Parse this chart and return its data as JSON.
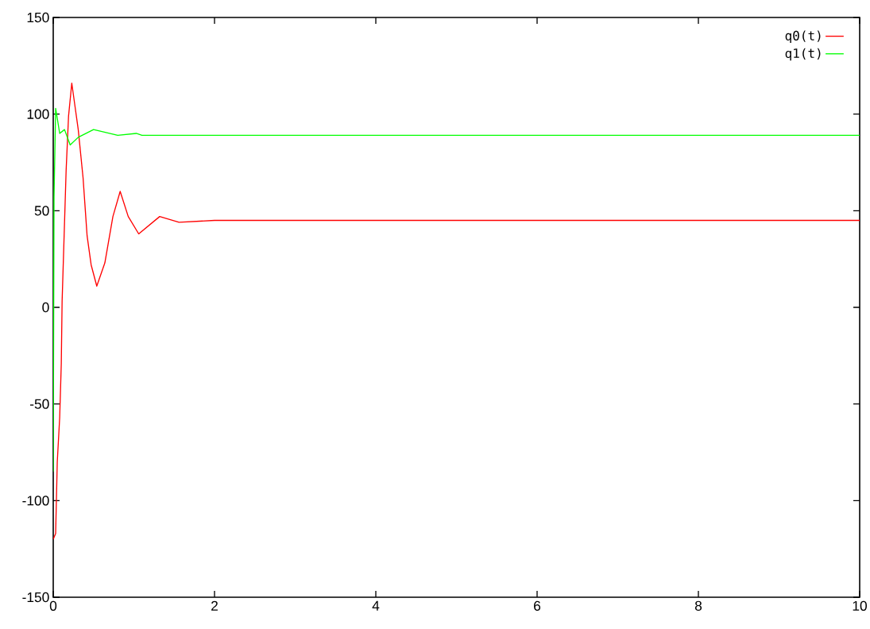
{
  "chart_data": {
    "type": "line",
    "series": [
      {
        "name": "q0(t)",
        "color": "#ff0000",
        "x": [
          0,
          0.03,
          0.05,
          0.08,
          0.1,
          0.11,
          0.16,
          0.19,
          0.23,
          0.31,
          0.37,
          0.42,
          0.47,
          0.54,
          0.64,
          0.74,
          0.83,
          0.93,
          1.06,
          1.32,
          1.56,
          2,
          10
        ],
        "values": [
          -120,
          -117,
          -80,
          -57,
          -29,
          3,
          71,
          99,
          116,
          92,
          67,
          37,
          22,
          11,
          23,
          47,
          60,
          47,
          38,
          47,
          44,
          45,
          45
        ]
      },
      {
        "name": "q1(t)",
        "color": "#00ff00",
        "x": [
          0,
          0.01,
          0.03,
          0.08,
          0.14,
          0.21,
          0.31,
          0.5,
          0.8,
          1.03,
          1.1,
          10
        ],
        "values": [
          -85,
          57,
          103,
          90,
          92,
          84,
          88,
          92,
          89,
          90,
          89,
          89
        ]
      }
    ],
    "xlim": [
      0,
      10
    ],
    "ylim": [
      -150,
      150
    ],
    "xticks": [
      0,
      2,
      4,
      6,
      8,
      10
    ],
    "yticks": [
      -150,
      -100,
      -50,
      0,
      50,
      100,
      150
    ],
    "grid": false,
    "legend": "top right",
    "marker": "none",
    "line_style": "solid"
  }
}
